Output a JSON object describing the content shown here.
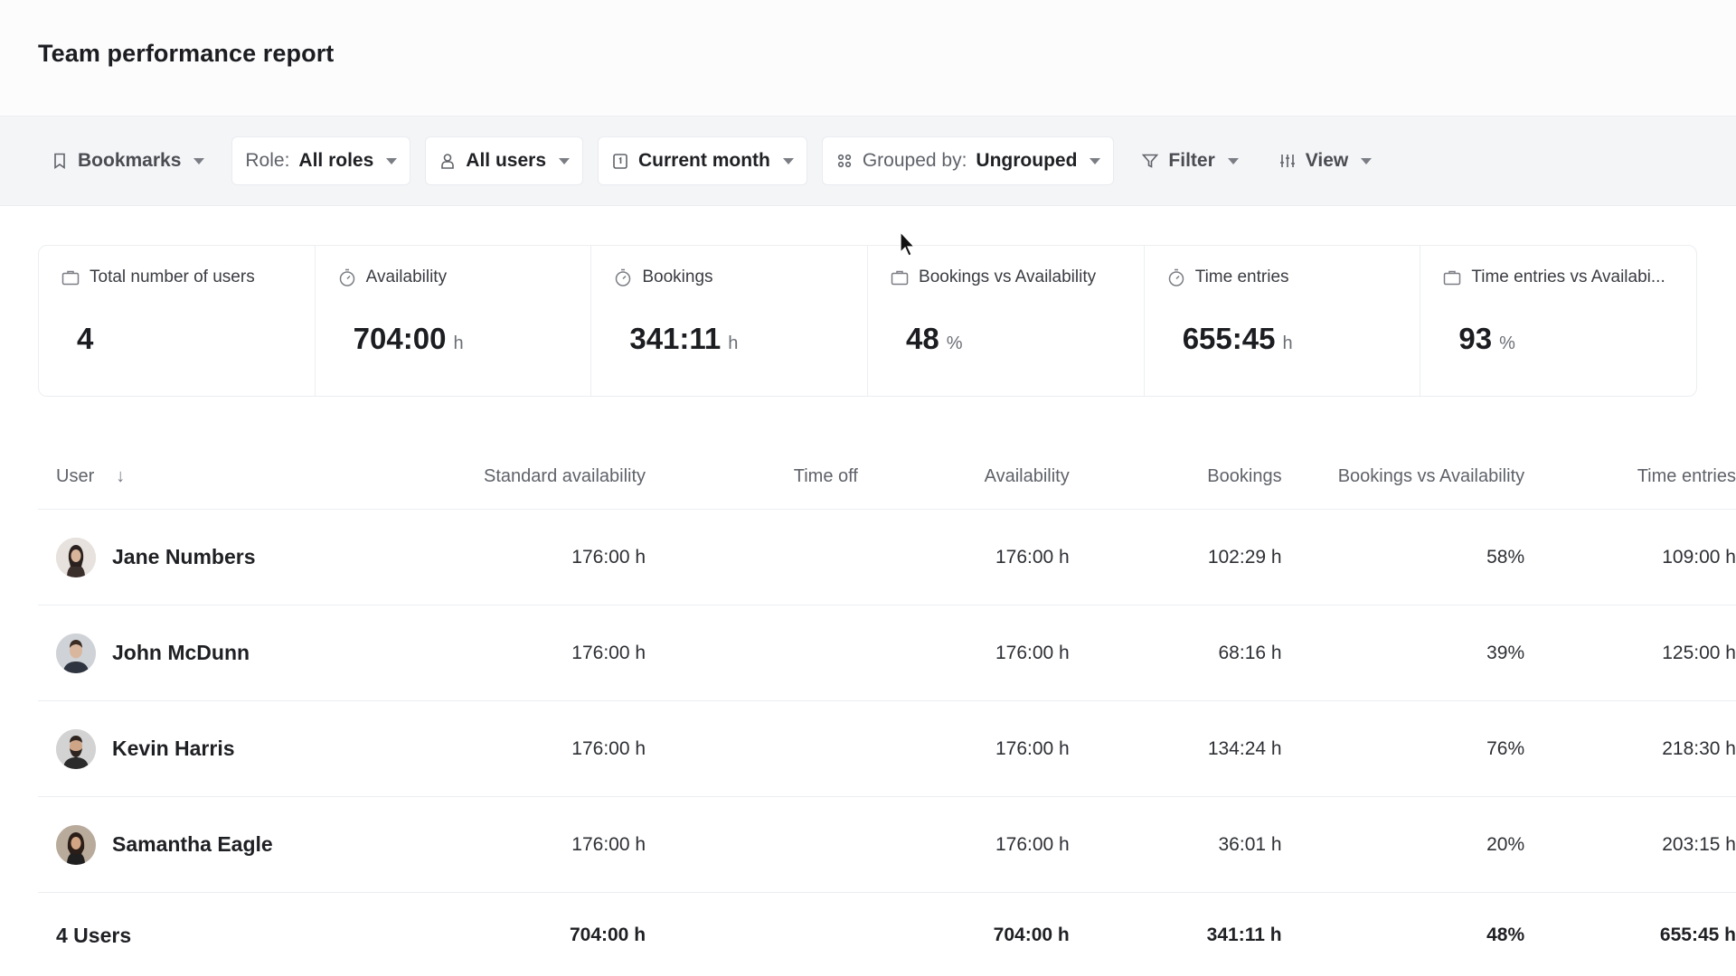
{
  "header": {
    "title": "Team performance report"
  },
  "toolbar": {
    "bookmarks": "Bookmarks",
    "role_prefix": "Role:",
    "role_value": "All roles",
    "users": "All users",
    "period": "Current month",
    "grouped_prefix": "Grouped by:",
    "grouped_value": "Ungrouped",
    "filter": "Filter",
    "view": "View"
  },
  "stats": [
    {
      "label": "Total number of users",
      "value": "4",
      "unit": "",
      "icon": "briefcase-icon"
    },
    {
      "label": "Availability",
      "value": "704:00",
      "unit": "h",
      "icon": "stopwatch-icon"
    },
    {
      "label": "Bookings",
      "value": "341:11",
      "unit": "h",
      "icon": "stopwatch-icon"
    },
    {
      "label": "Bookings vs Availability",
      "value": "48",
      "unit": "%",
      "icon": "briefcase-icon"
    },
    {
      "label": "Time entries",
      "value": "655:45",
      "unit": "h",
      "icon": "stopwatch-icon"
    },
    {
      "label": "Time entries vs Availabi...",
      "value": "93",
      "unit": "%",
      "icon": "briefcase-icon"
    }
  ],
  "table": {
    "columns": {
      "user": "User",
      "user_sort": "↓",
      "standard_availability": "Standard availability",
      "time_off": "Time off",
      "availability": "Availability",
      "bookings": "Bookings",
      "bookings_vs_availability": "Bookings vs Availability",
      "time_entries": "Time entries"
    },
    "rows": [
      {
        "name": "Jane Numbers",
        "standard": "176:00 h",
        "time_off": "",
        "availability": "176:00 h",
        "bookings": "102:29 h",
        "bva": "58%",
        "time_entries": "109:00 h"
      },
      {
        "name": "John McDunn",
        "standard": "176:00 h",
        "time_off": "",
        "availability": "176:00 h",
        "bookings": "68:16 h",
        "bva": "39%",
        "time_entries": "125:00 h"
      },
      {
        "name": "Kevin Harris",
        "standard": "176:00 h",
        "time_off": "",
        "availability": "176:00 h",
        "bookings": "134:24 h",
        "bva": "76%",
        "time_entries": "218:30 h"
      },
      {
        "name": "Samantha Eagle",
        "standard": "176:00 h",
        "time_off": "",
        "availability": "176:00 h",
        "bookings": "36:01 h",
        "bva": "20%",
        "time_entries": "203:15 h"
      }
    ],
    "total": {
      "label": "4 Users",
      "standard": "704:00 h",
      "time_off": "",
      "availability": "704:00 h",
      "bookings": "341:11 h",
      "bva": "48%",
      "time_entries": "655:45 h"
    }
  },
  "colors": {
    "toolbar_bg": "#f4f5f7",
    "text": "#1f2024",
    "muted": "#5f6269",
    "border": "#eceef1"
  }
}
